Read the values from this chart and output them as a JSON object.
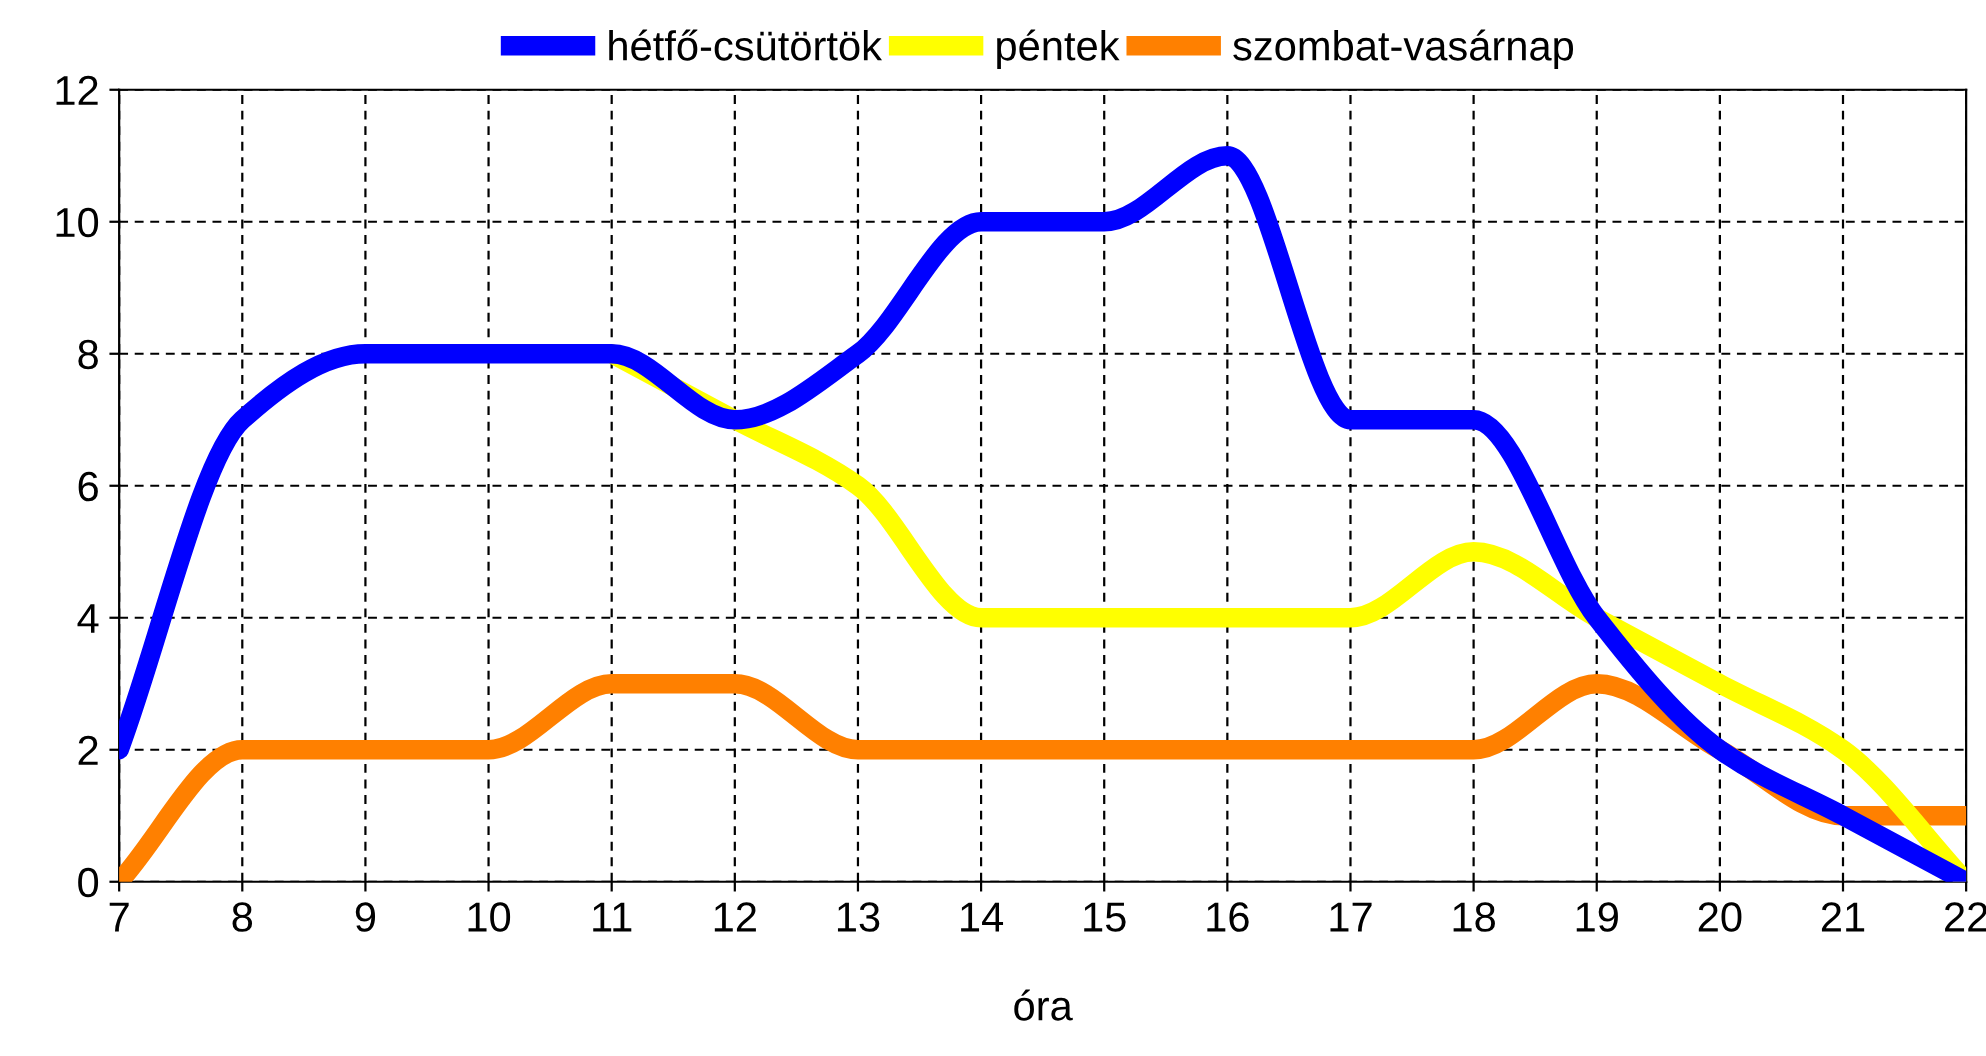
{
  "chart_data": {
    "type": "line",
    "xlabel": "óra",
    "x": [
      7,
      8,
      9,
      10,
      11,
      12,
      13,
      14,
      15,
      16,
      17,
      18,
      19,
      20,
      21,
      22
    ],
    "series": [
      {
        "name": "hétfő-csütörtök",
        "color": "#0000ff",
        "values": [
          2,
          7,
          8,
          8,
          8,
          7,
          8,
          10,
          10,
          11,
          7,
          7,
          4,
          2,
          1,
          0
        ]
      },
      {
        "name": "péntek",
        "color": "#ffff00",
        "values": [
          null,
          null,
          null,
          null,
          8,
          7,
          6,
          4,
          4,
          4,
          4,
          5,
          4,
          3,
          2,
          0
        ]
      },
      {
        "name": "szombat-vasárnap",
        "color": "#ff8000",
        "values": [
          0,
          2,
          2,
          2,
          3,
          3,
          2,
          2,
          2,
          2,
          2,
          2,
          3,
          2,
          1,
          1
        ]
      }
    ],
    "xlim": [
      7,
      22
    ],
    "xticks": [
      7,
      8,
      9,
      10,
      11,
      12,
      13,
      14,
      15,
      16,
      17,
      18,
      19,
      20,
      21,
      22
    ],
    "ylim": [
      0,
      12
    ],
    "yticks": [
      0,
      2,
      4,
      6,
      8,
      10,
      12
    ],
    "grid": true,
    "legend": "top",
    "marker": "none",
    "line_style": "solid"
  }
}
